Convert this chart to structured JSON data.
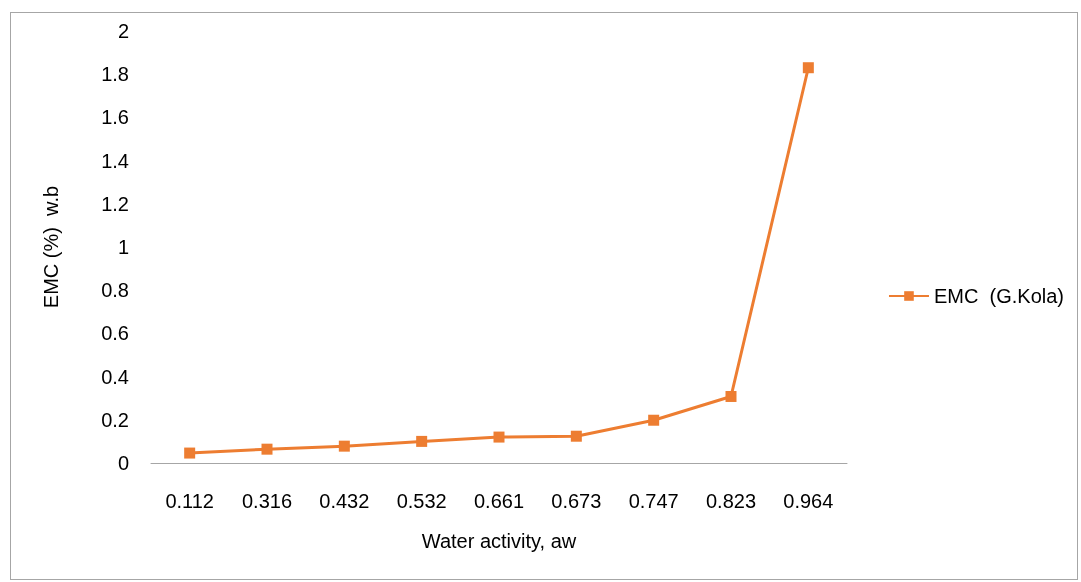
{
  "chart_data": {
    "type": "line",
    "xlabel": "Water activity, aw",
    "ylabel": "EMC (%)  w.b",
    "categories": [
      "0.112",
      "0.316",
      "0.432",
      "0.532",
      "0.661",
      "0.673",
      "0.747",
      "0.823",
      "0.964"
    ],
    "series": [
      {
        "name": "EMC  (G.Kola)",
        "color": "#ed7d31",
        "values": [
          0.046,
          0.064,
          0.078,
          0.1,
          0.12,
          0.124,
          0.198,
          0.308,
          1.83
        ]
      }
    ],
    "ylim": [
      0,
      2
    ],
    "yticks": [
      0,
      0.2,
      0.4,
      0.6,
      0.8,
      1,
      1.2,
      1.4,
      1.6,
      1.8,
      2
    ],
    "grid": false,
    "legend": "right",
    "marker": "square",
    "line_style": "solid"
  }
}
